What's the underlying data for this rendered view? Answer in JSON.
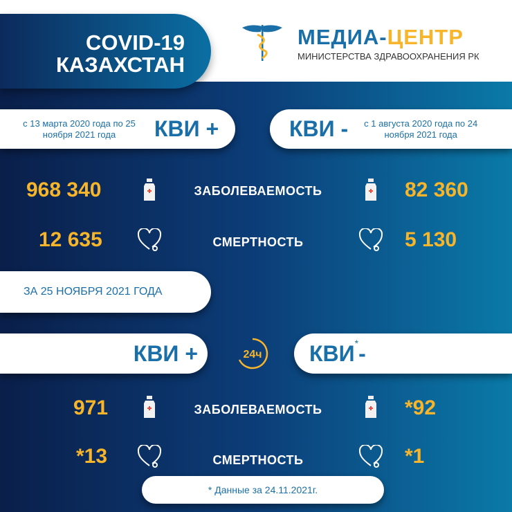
{
  "header": {
    "title_line1": "COVID-19",
    "title_line2": "КАЗАХСТАН",
    "logo_part1": "МЕДИА-",
    "logo_part2": "ЦЕНТР",
    "logo_sub": "МИНИСТЕРСТВА ЗДРАВООХРАНЕНИЯ РК"
  },
  "colors": {
    "accent": "#f7b52b",
    "blue": "#1a6fa8",
    "navy": "#0a1f4a"
  },
  "cumulative": {
    "left": {
      "period": "с 13 марта 2020 года по 25 ноября 2021 года",
      "label": "КВИ +",
      "cases": "968 340",
      "deaths": "12 635"
    },
    "right": {
      "period": "с 1 августа 2020 года по 24 ноября 2021 года",
      "label": "КВИ -",
      "cases": "82 360",
      "deaths": "5 130"
    },
    "cases_label": "ЗАБОЛЕВАЕМОСТЬ",
    "deaths_label": "СМЕРТНОСТЬ"
  },
  "daily": {
    "date_label": "ЗА 25 НОЯБРЯ 2021 ГОДА",
    "icon_text": "24ч",
    "left": {
      "label": "КВИ +",
      "cases": "971",
      "deaths": "*13"
    },
    "right": {
      "label": "КВИ",
      "asterisk": "*",
      "suffix": "-",
      "cases": "*92",
      "deaths": "*1"
    },
    "cases_label": "ЗАБОЛЕВАЕМОСТЬ",
    "deaths_label": "СМЕРТНОСТЬ",
    "footnote": "* Данные за 24.11.2021г."
  },
  "icons": [
    "caduceus-icon",
    "bottle-icon",
    "heart-icon",
    "clock-24-icon"
  ]
}
